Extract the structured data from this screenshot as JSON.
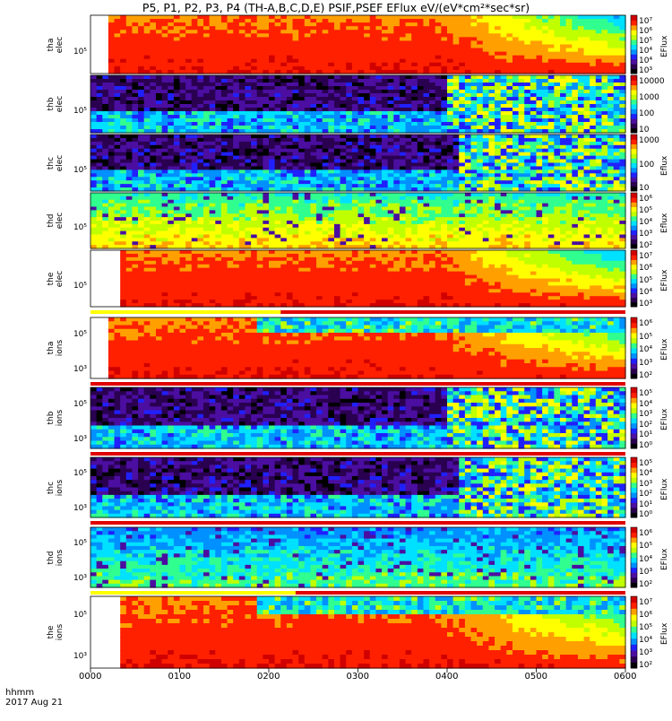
{
  "chart_data": {
    "type": "heatmap",
    "title": "P5, P1, P2, P3, P4 (TH-A,B,C,D,E) PSIF,PSEF EFlux eV/(eV*cm²*sec*sr)",
    "x_axis": {
      "ticks": [
        "0000",
        "0100",
        "0200",
        "0300",
        "0400",
        "0500",
        "0600"
      ],
      "range": [
        "0000",
        "0600"
      ],
      "unit_label": "hhmm",
      "date": "2017 Aug 21"
    },
    "panels": [
      {
        "probe": "tha",
        "species": "elec",
        "ylabels": [
          "10⁵"
        ],
        "colorbar_ticks": [
          "10³",
          "10⁴",
          "10⁴",
          "10⁵",
          "10⁶",
          "10⁷"
        ],
        "colorbar_unit": "EFlux",
        "data_start": "0015",
        "burst_start": null,
        "burst_end": null,
        "mode_bar": null
      },
      {
        "probe": "thb",
        "species": "elec",
        "ylabels": [
          "10⁵"
        ],
        "colorbar_ticks": [
          "10",
          "100",
          "1000",
          "10000"
        ],
        "colorbar_unit": "",
        "data_start": "0000",
        "burst_start": "0400",
        "burst_end": "0600",
        "mode_bar": null
      },
      {
        "probe": "thc",
        "species": "elec",
        "ylabels": [
          "10⁵"
        ],
        "colorbar_ticks": [
          "10",
          "100",
          "1000"
        ],
        "colorbar_unit": "Eflux",
        "data_start": "0000",
        "burst_start": "0367",
        "burst_end": "0567",
        "mode_bar": null
      },
      {
        "probe": "thd",
        "species": "elec",
        "ylabels": [
          "10⁵"
        ],
        "colorbar_ticks": [
          "10²",
          "10³",
          "10⁴",
          "10⁵",
          "10⁶"
        ],
        "colorbar_unit": "Eflux",
        "data_start": "0000",
        "burst_start": null,
        "burst_end": null,
        "mode_bar": null
      },
      {
        "probe": "the",
        "species": "elec",
        "ylabels": [
          "10⁵"
        ],
        "colorbar_ticks": [
          "10³",
          "10⁴",
          "10⁵",
          "10⁶",
          "10⁷"
        ],
        "colorbar_unit": "EFlux",
        "data_start": "0022",
        "burst_start": null,
        "burst_end": null,
        "mode_bar": "0168"
      },
      {
        "probe": "tha",
        "species": "ions",
        "ylabels": [
          "10⁵",
          "10³"
        ],
        "colorbar_ticks": [
          "10²",
          "10³",
          "10⁴",
          "10⁵",
          "10⁶"
        ],
        "colorbar_unit": "EFlux",
        "data_start": "0015",
        "burst_start": null,
        "burst_end": null,
        "mode_bar": "0000"
      },
      {
        "probe": "thb",
        "species": "ions",
        "ylabels": [
          "10⁵",
          "10³"
        ],
        "colorbar_ticks": [
          "10⁰",
          "10¹",
          "10²",
          "10³",
          "10⁴",
          "10⁵"
        ],
        "colorbar_unit": "EFlux",
        "data_start": "0000",
        "burst_start": "0400",
        "burst_end": "0600",
        "mode_bar": "0000"
      },
      {
        "probe": "thc",
        "species": "ions",
        "ylabels": [
          "10⁵",
          "10³"
        ],
        "colorbar_ticks": [
          "10⁰",
          "10¹",
          "10²",
          "10³",
          "10⁴",
          "10⁵"
        ],
        "colorbar_unit": "EFlux",
        "data_start": "0000",
        "burst_start": "0367",
        "burst_end": "0567",
        "mode_bar": "0000"
      },
      {
        "probe": "thd",
        "species": "ions",
        "ylabels": [
          "10⁵",
          "10³"
        ],
        "colorbar_ticks": [
          "10²",
          "10³",
          "10⁴",
          "10⁵",
          "10⁶"
        ],
        "colorbar_unit": "EFlux",
        "data_start": "0000",
        "burst_start": null,
        "burst_end": null,
        "mode_bar": "0218"
      },
      {
        "probe": "the",
        "species": "ions",
        "ylabels": [
          "10⁵",
          "10³"
        ],
        "colorbar_ticks": [
          "10²",
          "10³",
          "10⁴",
          "10⁵",
          "10⁶",
          "10⁷"
        ],
        "colorbar_unit": "EFlux",
        "data_start": "0022",
        "burst_start": null,
        "burst_end": null,
        "mode_bar": null
      }
    ]
  },
  "colors": {
    "colormap": [
      "#000000",
      "#2a0050",
      "#4b0ea0",
      "#2020ff",
      "#0090ff",
      "#00e0ff",
      "#30ff90",
      "#c0ff00",
      "#ffff00",
      "#ffa000",
      "#ff2000",
      "#d00000"
    ],
    "mode_bar_fast": "#ffff00",
    "mode_bar_slow": "#e00000"
  }
}
